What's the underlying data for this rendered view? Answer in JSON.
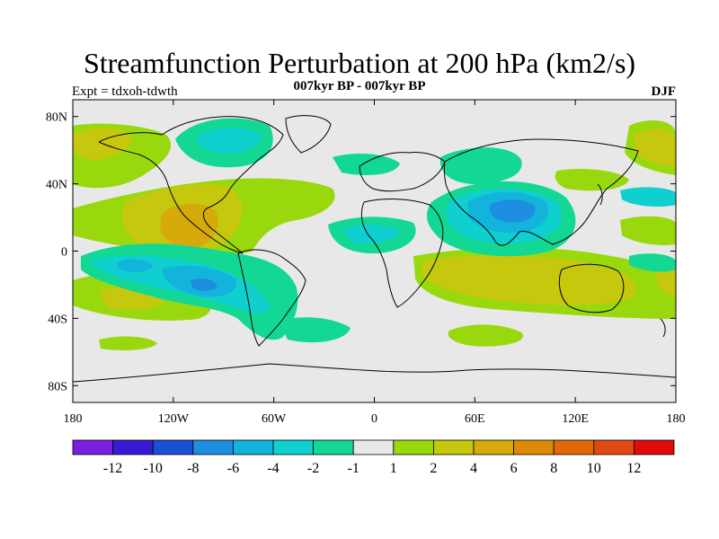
{
  "header": {
    "title": "Streamfunction Perturbation at 200 hPa (km2/s)",
    "subtitle": "007kyr BP - 007kyr BP",
    "left_label": "Expt = tdxoh-tdwth",
    "right_label": "DJF"
  },
  "axes": {
    "x_ticks": [
      "180",
      "120W",
      "60W",
      "0",
      "60E",
      "120E",
      "180"
    ],
    "x_values": [
      -180,
      -120,
      -60,
      0,
      60,
      120,
      180
    ],
    "y_ticks": [
      "80N",
      "40N",
      "0",
      "40S",
      "80S"
    ],
    "y_values": [
      80,
      40,
      0,
      -40,
      -80
    ],
    "lon_range": [
      -180,
      180
    ],
    "lat_range": [
      -90,
      90
    ]
  },
  "colorbar": {
    "colors": [
      "#7a1fe0",
      "#3a19d6",
      "#1b4fd4",
      "#1d8ee0",
      "#12b4dc",
      "#0fcfcf",
      "#12d894",
      "#e8e8e8",
      "#9ad80e",
      "#c6c80e",
      "#d6aa0a",
      "#de8a08",
      "#e06a08",
      "#e04a10",
      "#e00c0c"
    ],
    "labels": [
      "-12",
      "-10",
      "-8",
      "-6",
      "-4",
      "-2",
      "-1",
      "1",
      "2",
      "4",
      "6",
      "8",
      "10",
      "12"
    ]
  },
  "field_colors": {
    "background": "#e8e8e8",
    "neg1": "#12d894",
    "neg2": "#0fcfcf",
    "neg4": "#12b4dc",
    "neg6": "#1d8ee0",
    "pos1": "#9ad80e",
    "pos2": "#c6c80e",
    "pos4": "#d6aa0a"
  }
}
